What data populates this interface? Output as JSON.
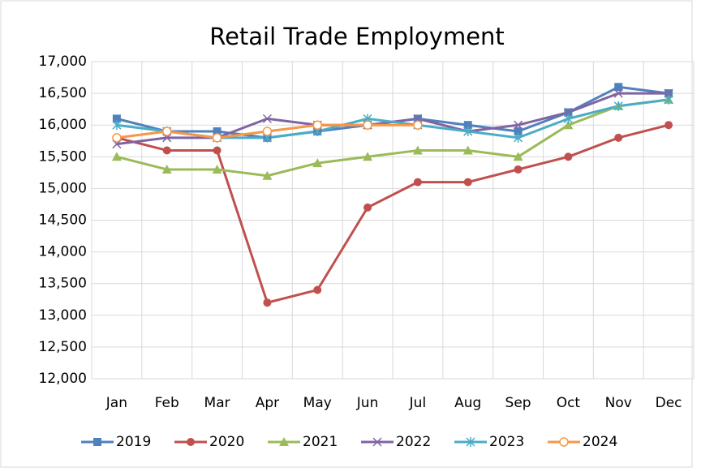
{
  "chart_data": {
    "type": "line",
    "title": "Retail Trade Employment",
    "categories": [
      "Jan",
      "Feb",
      "Mar",
      "Apr",
      "May",
      "Jun",
      "Jul",
      "Aug",
      "Sep",
      "Oct",
      "Nov",
      "Dec"
    ],
    "series": [
      {
        "name": "2019",
        "color": "#4f81bd",
        "marker": "square",
        "values": [
          16100,
          15900,
          15900,
          15800,
          15900,
          16000,
          16100,
          16000,
          15900,
          16200,
          16600,
          16500
        ]
      },
      {
        "name": "2020",
        "color": "#c0504d",
        "marker": "circle",
        "values": [
          15800,
          15600,
          15600,
          13200,
          13400,
          14700,
          15100,
          15100,
          15300,
          15500,
          15800,
          16000
        ]
      },
      {
        "name": "2021",
        "color": "#9bbb59",
        "marker": "triangle",
        "values": [
          15500,
          15300,
          15300,
          15200,
          15400,
          15500,
          15600,
          15600,
          15500,
          16000,
          16300,
          16400
        ]
      },
      {
        "name": "2022",
        "color": "#8064a2",
        "marker": "x",
        "values": [
          15700,
          15800,
          15800,
          16100,
          16000,
          16000,
          16100,
          15900,
          16000,
          16200,
          16500,
          16500
        ]
      },
      {
        "name": "2023",
        "color": "#4bacc6",
        "marker": "asterisk",
        "values": [
          16000,
          15900,
          15800,
          15800,
          15900,
          16100,
          16000,
          15900,
          15800,
          16100,
          16300,
          16400
        ]
      },
      {
        "name": "2024",
        "color": "#f79646",
        "marker": "open-circle",
        "values": [
          15800,
          15900,
          15800,
          15900,
          16000,
          16000,
          16000,
          null,
          null,
          null,
          null,
          null
        ]
      }
    ],
    "ylim": [
      12000,
      17000
    ],
    "yticks": [
      {
        "value": 12000,
        "label": "12,000"
      },
      {
        "value": 12500,
        "label": "12,500"
      },
      {
        "value": 13000,
        "label": "13,000"
      },
      {
        "value": 13500,
        "label": "13,500"
      },
      {
        "value": 14000,
        "label": "14,000"
      },
      {
        "value": 14500,
        "label": "14,500"
      },
      {
        "value": 15000,
        "label": "15,000"
      },
      {
        "value": 15500,
        "label": "15,500"
      },
      {
        "value": 16000,
        "label": "16,000"
      },
      {
        "value": 16500,
        "label": "16,500"
      },
      {
        "value": 17000,
        "label": "17,000"
      }
    ],
    "grid": true,
    "legend": "bottom"
  }
}
